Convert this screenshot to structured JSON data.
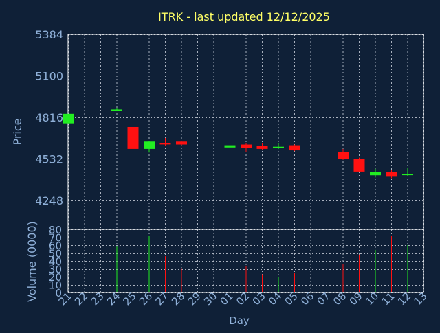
{
  "chart_data": {
    "type": "candlestick",
    "title": "ITRK - last updated 12/12/2025",
    "xlabel": "Day",
    "price_panel": {
      "ylabel": "Price",
      "ylim": [
        4050,
        5384
      ],
      "yticks": [
        4248,
        4532,
        4816,
        5100,
        5384
      ]
    },
    "volume_panel": {
      "ylabel": "Volume (0000)",
      "ylim": [
        0,
        80
      ],
      "yticks": [
        0,
        10,
        20,
        30,
        40,
        50,
        60,
        70,
        80
      ]
    },
    "x_ticks": [
      "21",
      "22",
      "23",
      "24",
      "25",
      "26",
      "27",
      "28",
      "29",
      "30",
      "01",
      "02",
      "03",
      "04",
      "05",
      "06",
      "07",
      "08",
      "09",
      "10",
      "11",
      "12",
      "13"
    ],
    "grid": true,
    "colors": {
      "background": "#0f2037",
      "plot_area": "#0f2037",
      "title": "#ffff66",
      "axis_text": "#8fb0d8",
      "grid": "#aab2bf",
      "up": "#22ee22",
      "down": "#ff1111"
    },
    "candles": [
      {
        "day": "21",
        "open": 4775,
        "high": 4840,
        "low": 4775,
        "close": 4840,
        "volume": 0
      },
      {
        "day": "24",
        "open": 4870,
        "high": 4880,
        "low": 4860,
        "close": 4870,
        "volume": 58
      },
      {
        "day": "25",
        "open": 4750,
        "high": 4750,
        "low": 4595,
        "close": 4600,
        "volume": 75
      },
      {
        "day": "26",
        "open": 4600,
        "high": 4655,
        "low": 4575,
        "close": 4650,
        "volume": 72
      },
      {
        "day": "27",
        "open": 4640,
        "high": 4675,
        "low": 4620,
        "close": 4635,
        "volume": 46
      },
      {
        "day": "28",
        "open": 4650,
        "high": 4652,
        "low": 4625,
        "close": 4630,
        "volume": 30
      },
      {
        "day": "01",
        "open": 4610,
        "high": 4650,
        "low": 4535,
        "close": 4625,
        "volume": 63
      },
      {
        "day": "02",
        "open": 4630,
        "high": 4640,
        "low": 4580,
        "close": 4605,
        "volume": 33
      },
      {
        "day": "03",
        "open": 4620,
        "high": 4640,
        "low": 4590,
        "close": 4600,
        "volume": 23
      },
      {
        "day": "04",
        "open": 4608,
        "high": 4640,
        "low": 4600,
        "close": 4615,
        "volume": 20
      },
      {
        "day": "05",
        "open": 4625,
        "high": 4630,
        "low": 4585,
        "close": 4590,
        "volume": 25
      },
      {
        "day": "08",
        "open": 4580,
        "high": 4600,
        "low": 4525,
        "close": 4530,
        "volume": 36
      },
      {
        "day": "09",
        "open": 4530,
        "high": 4540,
        "low": 4440,
        "close": 4445,
        "volume": 48
      },
      {
        "day": "10",
        "open": 4420,
        "high": 4465,
        "low": 4405,
        "close": 4440,
        "volume": 54
      },
      {
        "day": "11",
        "open": 4440,
        "high": 4455,
        "low": 4400,
        "close": 4410,
        "volume": 72
      },
      {
        "day": "12",
        "open": 4425,
        "high": 4470,
        "low": 4415,
        "close": 4430,
        "volume": 60
      }
    ]
  }
}
